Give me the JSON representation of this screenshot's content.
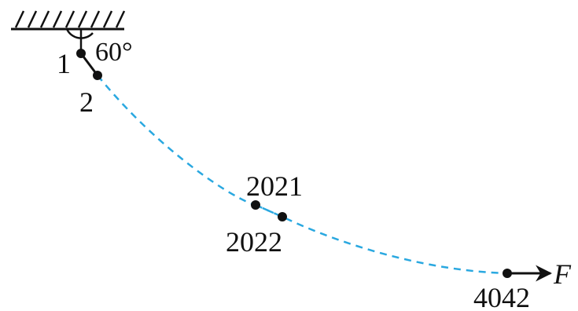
{
  "labels": {
    "node_1": "1",
    "node_2": "2",
    "node_2021": "2021",
    "node_2022": "2022",
    "node_4042": "4042",
    "angle": "60°",
    "force": "F"
  },
  "colors": {
    "ink": "#111111",
    "chain": "#2aa8e0"
  }
}
